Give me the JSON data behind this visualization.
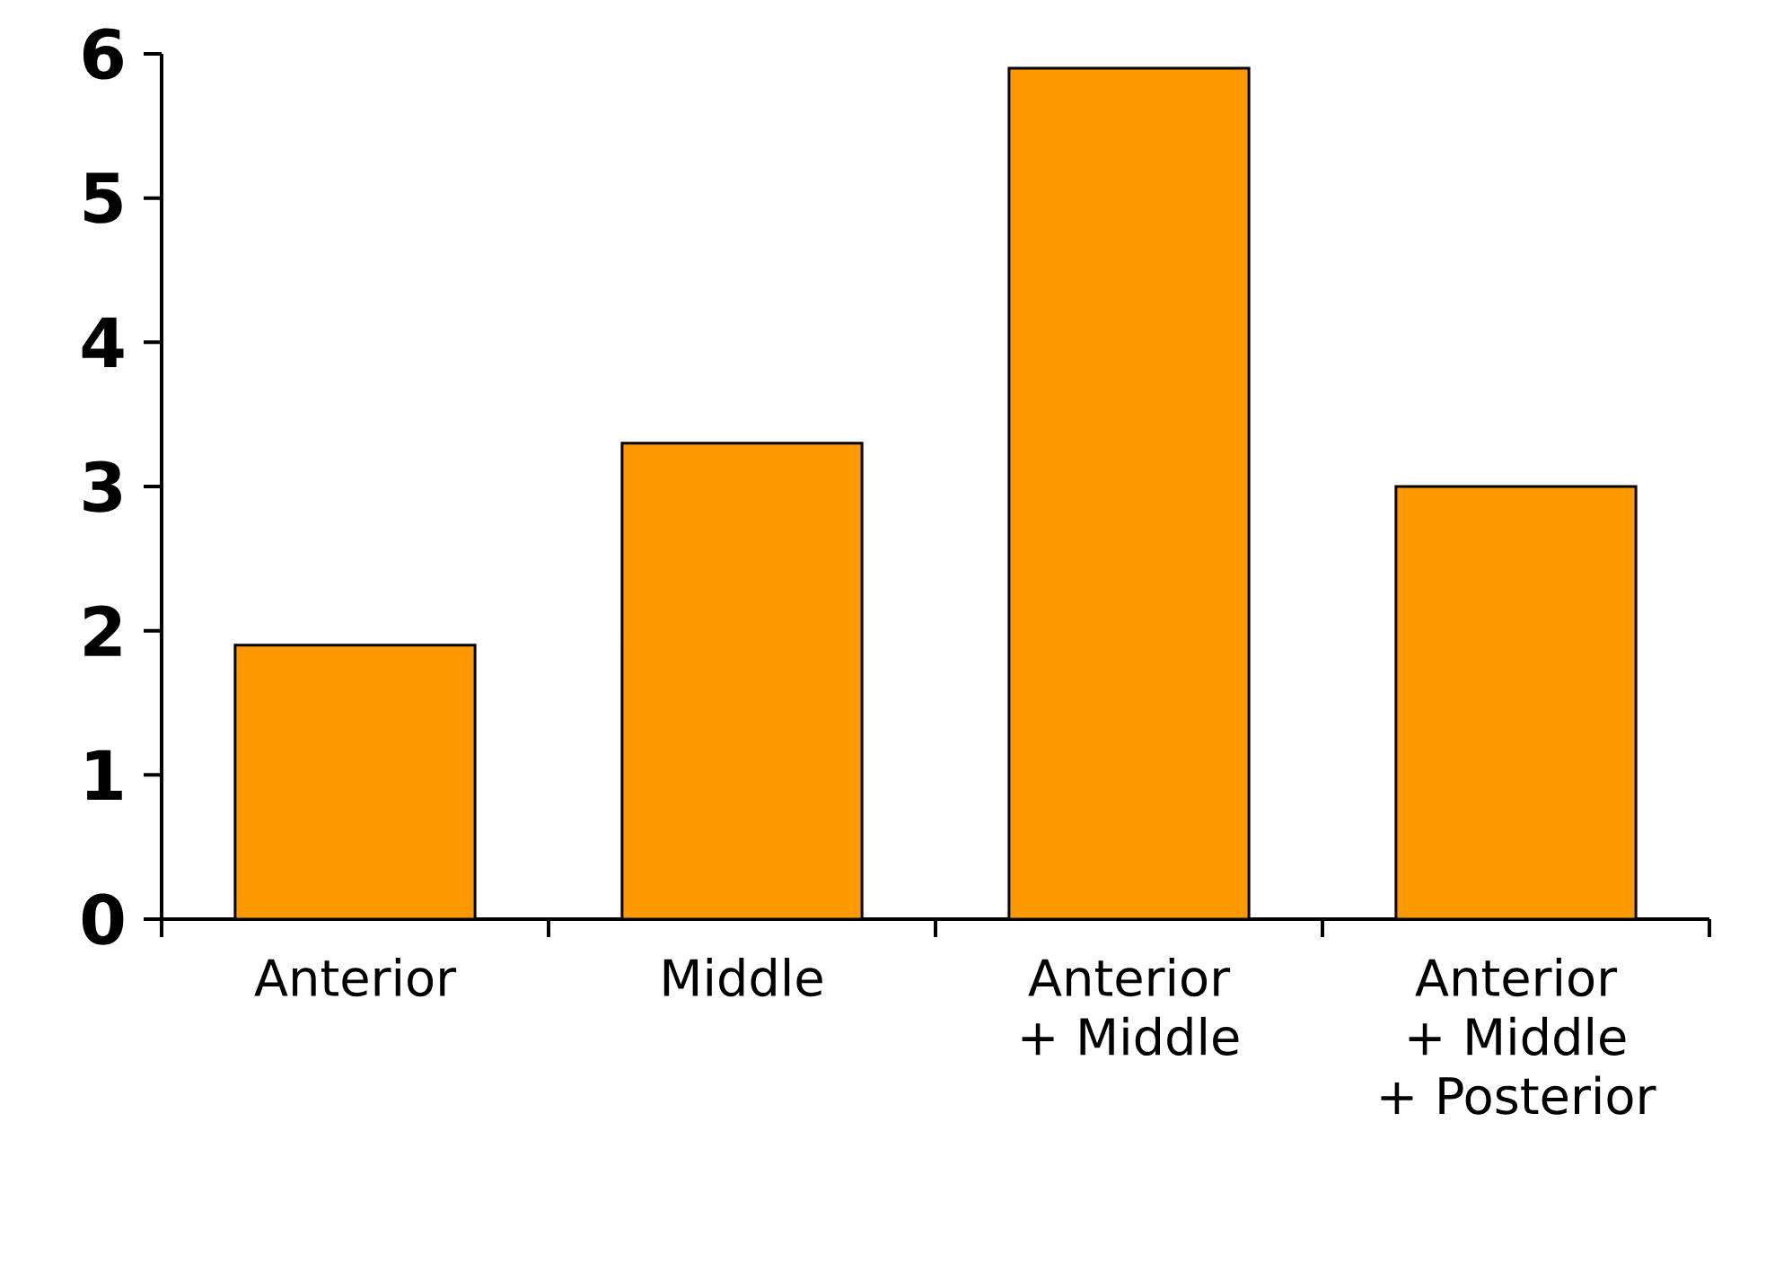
{
  "chart_data": {
    "type": "bar",
    "categories": [
      "Anterior",
      "Middle",
      "Anterior\n+ Middle",
      "Anterior\n+ Middle\n+ Posterior"
    ],
    "values": [
      1.9,
      3.3,
      5.9,
      3.0
    ],
    "color": "#ff9900",
    "ylim": [
      0,
      6
    ],
    "yticks": [
      0,
      1,
      2,
      3,
      4,
      5,
      6
    ],
    "grid": false
  }
}
